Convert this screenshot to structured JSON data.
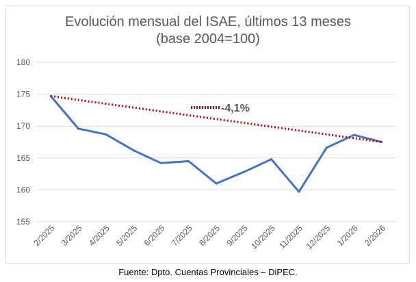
{
  "chart_data": {
    "type": "line",
    "title": "Evolución mensual del ISAE, últimos 13 meses",
    "subtitle": "(base 2004=100)",
    "categories": [
      "2/2025",
      "3/2025",
      "4/2025",
      "5/2025",
      "6/2025",
      "7/2025",
      "8/2025",
      "9/2025",
      "10/2025",
      "11/2025",
      "12/2025",
      "1/2026",
      "2/2026"
    ],
    "series": [
      {
        "values": [
          174.7,
          169.6,
          168.7,
          166.2,
          164.2,
          164.5,
          161.0,
          162.8,
          164.8,
          159.7,
          166.6,
          168.6,
          167.5
        ],
        "color": "#4472c4"
      }
    ],
    "trend_line": {
      "from": 174.7,
      "to": 167.5,
      "color": "#c00000",
      "style": "dotted"
    },
    "annotation": "-4,1%",
    "yticks": [
      "155",
      "160",
      "165",
      "170",
      "175",
      "180"
    ],
    "ylim": [
      155,
      180
    ],
    "grid": true,
    "source": "Fuente: Dpto. Cuentas Provinciales – DiPEC."
  }
}
